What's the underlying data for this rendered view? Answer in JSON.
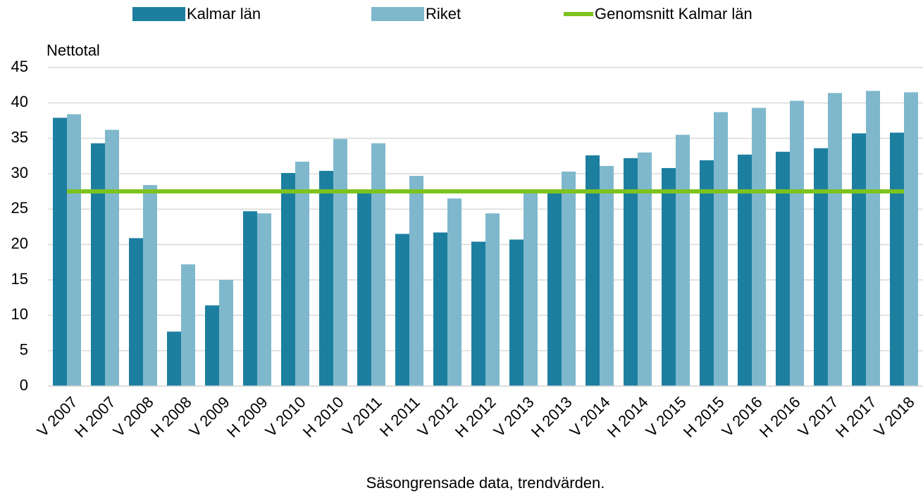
{
  "chart_data": {
    "type": "bar",
    "y_axis_label": "Nettotal",
    "x_axis_label": "Säsongrensade data, trendvärden.",
    "categories": [
      "V 2007",
      "H 2007",
      "V 2008",
      "H 2008",
      "V 2009",
      "H 2009",
      "V 2010",
      "H 2010",
      "V 2011",
      "H 2011",
      "V 2012",
      "H 2012",
      "V 2013",
      "H 2013",
      "V 2014",
      "H 2014",
      "V 2015",
      "H 2015",
      "V 2016",
      "H 2016",
      "V 2017",
      "H 2017",
      "V 2018"
    ],
    "series": [
      {
        "name": "Kalmar län",
        "color": "#1d7fa0",
        "values": [
          37.9,
          34.3,
          20.9,
          7.7,
          11.4,
          24.7,
          30.1,
          30.4,
          27.5,
          21.5,
          21.7,
          20.4,
          20.7,
          27.4,
          32.6,
          32.2,
          30.8,
          31.9,
          32.7,
          33.1,
          33.6,
          35.7,
          35.8
        ]
      },
      {
        "name": "Riket",
        "color": "#7fb8cc",
        "values": [
          38.4,
          36.2,
          28.4,
          17.2,
          15.0,
          24.4,
          31.7,
          34.9,
          34.3,
          29.7,
          26.5,
          24.4,
          27.4,
          30.3,
          31.1,
          33.0,
          35.5,
          38.7,
          39.3,
          40.3,
          41.4,
          41.7,
          41.5
        ]
      },
      {
        "name": "Genomsnitt Kalmar län",
        "color": "#7dc31f",
        "type": "line",
        "values": [
          27.5,
          27.5,
          27.5,
          27.5,
          27.5,
          27.5,
          27.5,
          27.5,
          27.5,
          27.5,
          27.5,
          27.5,
          27.5,
          27.5,
          27.5,
          27.5,
          27.5,
          27.5,
          27.5,
          27.5,
          27.5,
          27.5,
          27.5
        ]
      }
    ],
    "ylim": [
      0,
      45
    ],
    "yticks": [
      0,
      5,
      10,
      15,
      20,
      25,
      30,
      35,
      40,
      45
    ],
    "grid": true,
    "legend": "top"
  }
}
